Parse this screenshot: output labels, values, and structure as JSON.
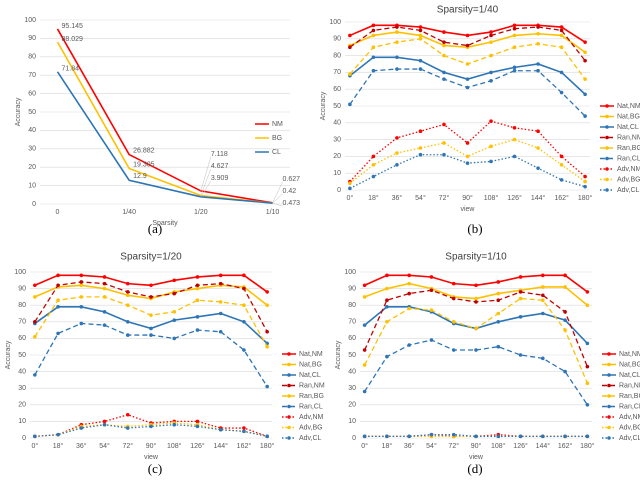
{
  "chart_data": [
    {
      "type": "line",
      "caption": "(a)",
      "x_label": "Sparsity",
      "y_label": "Accuracy",
      "legend": "inside-right",
      "grid": true,
      "data_labels": true,
      "categories": [
        "0",
        "1/40",
        "1/20",
        "1/10"
      ],
      "ylim": [
        0,
        100
      ],
      "yticks": [
        0,
        10,
        20,
        30,
        40,
        50,
        60,
        70,
        80,
        90,
        100
      ],
      "series": [
        {
          "name": "NM",
          "color": "#ff0000",
          "dash": "solid",
          "marker": false,
          "values": [
            95.145,
            26.882,
            7.118,
            0.627
          ]
        },
        {
          "name": "BG",
          "color": "#ffc000",
          "dash": "solid",
          "marker": false,
          "values": [
            88.029,
            19.305,
            4.627,
            0.42
          ]
        },
        {
          "name": "CL",
          "color": "#2e75b6",
          "dash": "solid",
          "marker": false,
          "values": [
            71.84,
            12.9,
            3.909,
            0.473
          ]
        }
      ]
    },
    {
      "type": "line",
      "caption": "(b)",
      "title": "Sparsity=1/40",
      "x_label": "view",
      "y_label": "Accuracy",
      "legend": "outside-right",
      "grid": true,
      "categories": [
        "0°",
        "18°",
        "36°",
        "54°",
        "72°",
        "90°",
        "108°",
        "126°",
        "144°",
        "162°",
        "180°"
      ],
      "ylim": [
        0,
        100
      ],
      "yticks": [
        0,
        10,
        20,
        30,
        40,
        50,
        60,
        70,
        80,
        90,
        100
      ],
      "series": [
        {
          "name": "Nat,NM",
          "color": "#ff0000",
          "dash": "solid",
          "marker": true,
          "values": [
            92,
            98,
            98,
            97,
            94,
            92,
            94,
            98,
            98,
            97,
            88
          ]
        },
        {
          "name": "Nat,BG",
          "color": "#ffc000",
          "dash": "solid",
          "marker": true,
          "values": [
            86,
            92,
            94,
            92,
            86,
            85,
            88,
            92,
            93,
            92,
            82
          ]
        },
        {
          "name": "Nat,CL",
          "color": "#2e75b6",
          "dash": "solid",
          "marker": true,
          "values": [
            68,
            79,
            79,
            77,
            70,
            66,
            70,
            73,
            75,
            70,
            57
          ]
        },
        {
          "name": "Ran,NM",
          "color": "#c00000",
          "dash": "dashed",
          "marker": true,
          "values": [
            85,
            95,
            97,
            95,
            88,
            86,
            92,
            96,
            97,
            95,
            77
          ]
        },
        {
          "name": "Ran,BG",
          "color": "#ffc000",
          "dash": "dashed",
          "marker": true,
          "values": [
            69,
            85,
            88,
            90,
            80,
            75,
            80,
            85,
            87,
            85,
            66
          ]
        },
        {
          "name": "Ran,CL",
          "color": "#2e75b6",
          "dash": "dashed",
          "marker": true,
          "values": [
            51,
            71,
            72,
            72,
            66,
            61,
            65,
            71,
            71,
            58,
            44
          ]
        },
        {
          "name": "Adv,NM",
          "color": "#ff0000",
          "dash": "dotted",
          "marker": true,
          "values": [
            5,
            20,
            31,
            35,
            39,
            28,
            41,
            37,
            35,
            20,
            8
          ]
        },
        {
          "name": "Adv,BG",
          "color": "#ffc000",
          "dash": "dotted",
          "marker": true,
          "values": [
            4,
            15,
            22,
            25,
            28,
            20,
            26,
            30,
            25,
            15,
            5
          ]
        },
        {
          "name": "Adv,CL",
          "color": "#2e75b6",
          "dash": "dotted",
          "marker": true,
          "values": [
            1,
            8,
            15,
            21,
            21,
            16,
            17,
            20,
            13,
            6,
            2
          ]
        }
      ]
    },
    {
      "type": "line",
      "caption": "(c)",
      "title": "Sparsity=1/20",
      "x_label": "view",
      "y_label": "Accuracy",
      "legend": "outside-right",
      "grid": true,
      "categories": [
        "0°",
        "18°",
        "36°",
        "54°",
        "72°",
        "90°",
        "108°",
        "126°",
        "144°",
        "162°",
        "180°"
      ],
      "ylim": [
        0,
        100
      ],
      "yticks": [
        0,
        10,
        20,
        30,
        40,
        50,
        60,
        70,
        80,
        90,
        100
      ],
      "series": [
        {
          "name": "Nat,NM",
          "color": "#ff0000",
          "dash": "solid",
          "marker": true,
          "values": [
            92,
            98,
            98,
            97,
            93,
            92,
            95,
            97,
            98,
            98,
            88
          ]
        },
        {
          "name": "Nat,BG",
          "color": "#ffc000",
          "dash": "solid",
          "marker": true,
          "values": [
            85,
            91,
            92,
            90,
            86,
            84,
            88,
            90,
            92,
            91,
            80
          ]
        },
        {
          "name": "Nat,CL",
          "color": "#2e75b6",
          "dash": "solid",
          "marker": true,
          "values": [
            69,
            79,
            79,
            76,
            70,
            66,
            71,
            73,
            75,
            70,
            57
          ]
        },
        {
          "name": "Ran,NM",
          "color": "#c00000",
          "dash": "dashed",
          "marker": true,
          "values": [
            70,
            92,
            94,
            93,
            88,
            85,
            87,
            92,
            93,
            90,
            64
          ]
        },
        {
          "name": "Ran,BG",
          "color": "#ffc000",
          "dash": "dashed",
          "marker": true,
          "values": [
            61,
            83,
            85,
            85,
            80,
            74,
            76,
            83,
            82,
            80,
            55
          ]
        },
        {
          "name": "Ran,CL",
          "color": "#2e75b6",
          "dash": "dashed",
          "marker": true,
          "values": [
            38,
            63,
            69,
            68,
            62,
            62,
            60,
            65,
            64,
            53,
            31
          ]
        },
        {
          "name": "Adv,NM",
          "color": "#ff0000",
          "dash": "dotted",
          "marker": true,
          "values": [
            1,
            2,
            8,
            10,
            14,
            9,
            10,
            10,
            6,
            6,
            1
          ]
        },
        {
          "name": "Adv,BG",
          "color": "#ffc000",
          "dash": "dotted",
          "marker": true,
          "values": [
            1,
            2,
            7,
            8,
            7,
            8,
            9,
            8,
            5,
            4,
            1
          ]
        },
        {
          "name": "Adv,CL",
          "color": "#2e75b6",
          "dash": "dotted",
          "marker": true,
          "values": [
            1,
            2,
            6,
            8,
            6,
            7,
            8,
            7,
            5,
            4,
            1
          ]
        }
      ]
    },
    {
      "type": "line",
      "caption": "(d)",
      "title": "Sparsity=1/10",
      "x_label": "view",
      "y_label": "Accuracy",
      "legend": "outside-right",
      "grid": true,
      "categories": [
        "0°",
        "18°",
        "36°",
        "54°",
        "72°",
        "90°",
        "108°",
        "126°",
        "144°",
        "162°",
        "180°"
      ],
      "ylim": [
        0,
        100
      ],
      "yticks": [
        0,
        10,
        20,
        30,
        40,
        50,
        60,
        70,
        80,
        90,
        100
      ],
      "series": [
        {
          "name": "Nat,NM",
          "color": "#ff0000",
          "dash": "solid",
          "marker": true,
          "values": [
            92,
            98,
            98,
            97,
            93,
            92,
            94,
            97,
            98,
            98,
            88
          ]
        },
        {
          "name": "Nat,BG",
          "color": "#ffc000",
          "dash": "solid",
          "marker": true,
          "values": [
            85,
            90,
            93,
            90,
            85,
            84,
            87,
            89,
            91,
            91,
            80
          ]
        },
        {
          "name": "Nat,CL",
          "color": "#2e75b6",
          "dash": "solid",
          "marker": true,
          "values": [
            68,
            79,
            79,
            76,
            69,
            66,
            70,
            73,
            75,
            71,
            57
          ]
        },
        {
          "name": "Ran,NM",
          "color": "#c00000",
          "dash": "dashed",
          "marker": true,
          "values": [
            53,
            83,
            87,
            89,
            84,
            82,
            83,
            88,
            86,
            76,
            43
          ]
        },
        {
          "name": "Ran,BG",
          "color": "#ffc000",
          "dash": "dashed",
          "marker": true,
          "values": [
            44,
            70,
            78,
            77,
            70,
            66,
            75,
            84,
            83,
            65,
            33
          ]
        },
        {
          "name": "Ran,CL",
          "color": "#2e75b6",
          "dash": "dashed",
          "marker": true,
          "values": [
            28,
            49,
            56,
            59,
            53,
            53,
            55,
            50,
            48,
            40,
            20
          ]
        },
        {
          "name": "Adv,NM",
          "color": "#ff0000",
          "dash": "dotted",
          "marker": true,
          "values": [
            1,
            1,
            1,
            2,
            1,
            1,
            2,
            1,
            1,
            1,
            1
          ]
        },
        {
          "name": "Adv,BG",
          "color": "#ffc000",
          "dash": "dotted",
          "marker": true,
          "values": [
            1,
            1,
            1,
            1,
            1,
            1,
            1,
            1,
            1,
            1,
            1
          ]
        },
        {
          "name": "Adv,CL",
          "color": "#2e75b6",
          "dash": "dotted",
          "marker": true,
          "values": [
            1,
            1,
            1,
            2,
            2,
            1,
            1,
            1,
            1,
            1,
            1
          ]
        }
      ]
    }
  ]
}
